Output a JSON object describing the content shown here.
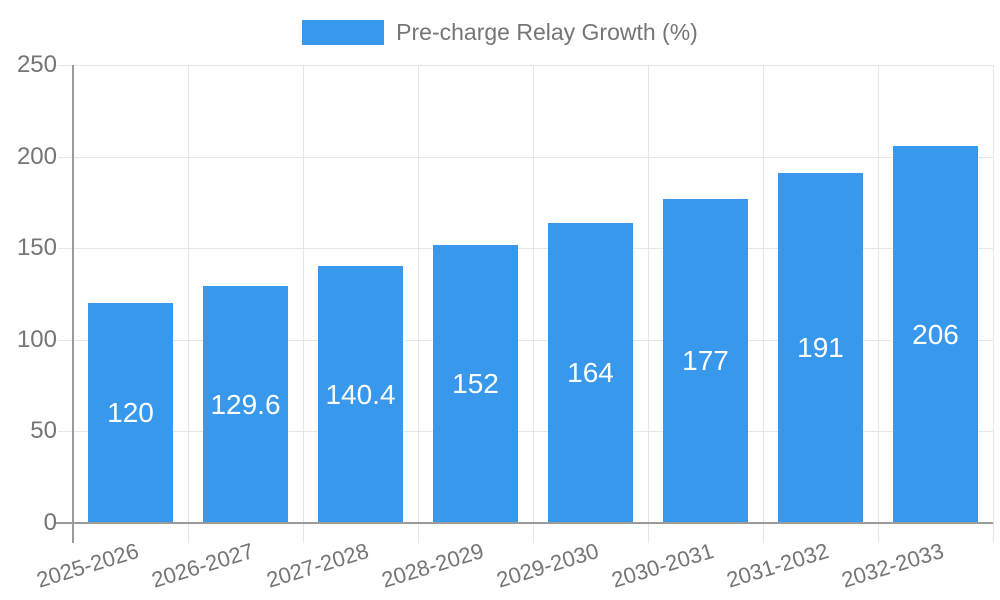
{
  "chart_data": {
    "type": "bar",
    "title": "Pre-charge Relay Growth (%)",
    "categories": [
      "2025-2026",
      "2026-2027",
      "2027-2028",
      "2028-2029",
      "2029-2030",
      "2030-2031",
      "2031-2032",
      "2032-2033"
    ],
    "values": [
      120,
      129.6,
      140.4,
      152,
      164,
      177,
      191,
      206
    ],
    "value_labels": [
      "120",
      "129.6",
      "140.4",
      "152",
      "164",
      "177",
      "191",
      "206"
    ],
    "xlabel": "",
    "ylabel": "",
    "ylim": [
      0,
      250
    ],
    "yticks": [
      0,
      50,
      100,
      150,
      200,
      250
    ],
    "grid": true,
    "legend_position": "top"
  },
  "colors": {
    "bar": "#3898ec",
    "grid": "#e6e6e6",
    "axis": "#9b9b9b",
    "text": "#757575",
    "value_label": "#ffffff",
    "background": "#ffffff"
  }
}
